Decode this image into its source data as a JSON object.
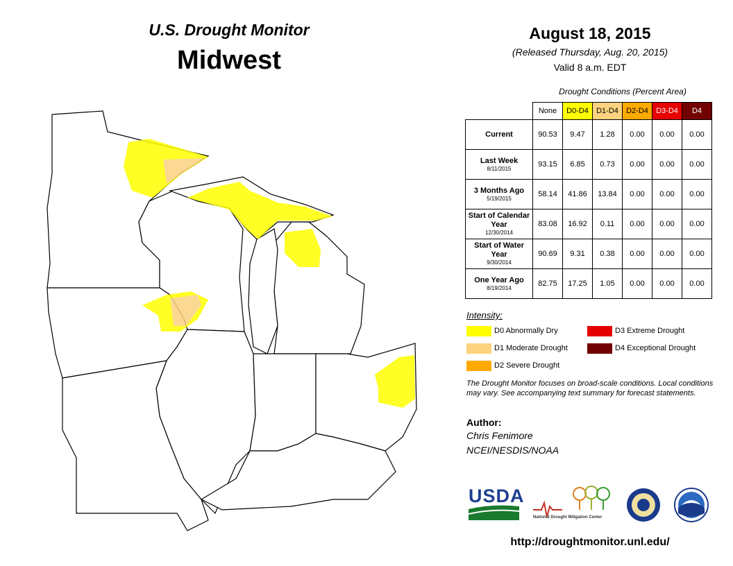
{
  "header": {
    "title": "U.S. Drought Monitor",
    "region": "Midwest",
    "date": "August 18, 2015",
    "released": "(Released Thursday, Aug. 20, 2015)",
    "valid": "Valid  8 a.m. EDT"
  },
  "table": {
    "caption": "Drought Conditions (Percent Area)",
    "columns": [
      {
        "label": "None",
        "color": "#ffffff"
      },
      {
        "label": "D0-D4",
        "color": "#ffff00"
      },
      {
        "label": "D1-D4",
        "color": "#fcd37f"
      },
      {
        "label": "D2-D4",
        "color": "#ffaa00"
      },
      {
        "label": "D3-D4",
        "color": "#e60000"
      },
      {
        "label": "D4",
        "color": "#730000"
      }
    ],
    "rows": [
      {
        "label": "Current",
        "values": [
          "90.53",
          "9.47",
          "1.28",
          "0.00",
          "0.00",
          "0.00"
        ]
      },
      {
        "label": "Last Week",
        "date": "8/11/2015",
        "values": [
          "93.15",
          "6.85",
          "0.73",
          "0.00",
          "0.00",
          "0.00"
        ]
      },
      {
        "label": "3 Months Ago",
        "date": "5/19/2015",
        "values": [
          "58.14",
          "41.86",
          "13.84",
          "0.00",
          "0.00",
          "0.00"
        ]
      },
      {
        "label": "Start of Calendar Year",
        "date": "12/30/2014",
        "values": [
          "83.08",
          "16.92",
          "0.11",
          "0.00",
          "0.00",
          "0.00"
        ]
      },
      {
        "label": "Start of Water Year",
        "date": "9/30/2014",
        "values": [
          "90.69",
          "9.31",
          "0.38",
          "0.00",
          "0.00",
          "0.00"
        ]
      },
      {
        "label": "One Year Ago",
        "date": "8/19/2014",
        "values": [
          "82.75",
          "17.25",
          "1.05",
          "0.00",
          "0.00",
          "0.00"
        ]
      }
    ]
  },
  "legend": {
    "title": "Intensity:",
    "items": [
      {
        "label": "D0 Abnormally Dry",
        "color": "#ffff00"
      },
      {
        "label": "D1 Moderate Drought",
        "color": "#fcd37f"
      },
      {
        "label": "D2 Severe Drought",
        "color": "#ffaa00"
      },
      {
        "label": "D3 Extreme Drought",
        "color": "#e60000"
      },
      {
        "label": "D4 Exceptional Drought",
        "color": "#730000"
      }
    ]
  },
  "note": "The Drought Monitor focuses on broad-scale conditions. Local conditions may vary. See accompanying text summary for forecast statements.",
  "author": {
    "label": "Author:",
    "name": "Chris Fenimore",
    "org": "NCEI/NESDIS/NOAA"
  },
  "logos": [
    "USDA",
    "National Drought Mitigation Center"
  ],
  "url": "http://droughtmonitor.unl.edu/"
}
